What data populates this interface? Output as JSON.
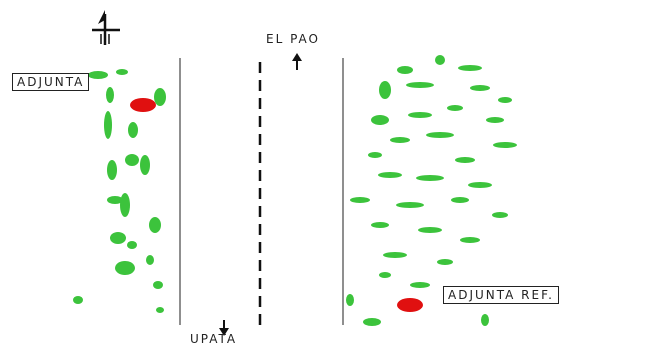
{
  "map": {
    "labels": {
      "left_marker": "ADJUNTA",
      "right_marker": "ADJUNTA REF.",
      "north_direction": "EL PAO",
      "south_direction": "UPATA"
    },
    "colors": {
      "road_lines": "#6a6a6a",
      "center_dash": "#111111",
      "vegetation": "#3cc33c",
      "marker": "#e01010",
      "label_border": "#222222"
    },
    "icons": {
      "north_arrow": "north-arrow-icon",
      "up_arrow": "up-arrow-icon",
      "down_arrow": "down-arrow-icon"
    }
  }
}
